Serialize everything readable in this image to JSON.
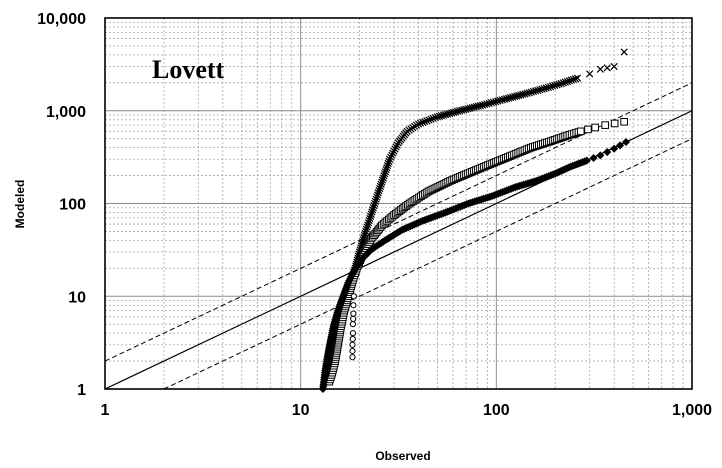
{
  "chart_data": {
    "type": "scatter",
    "title": "",
    "annotation": "Lovett",
    "xlabel": "Observed",
    "ylabel": "Modeled",
    "xscale": "log",
    "yscale": "log",
    "xlim": [
      1,
      1000
    ],
    "ylim": [
      1,
      10000
    ],
    "xticks": [
      "1",
      "10",
      "100",
      "1,000"
    ],
    "yticks": [
      "1",
      "10",
      "100",
      "1,000",
      "10,000"
    ],
    "grid": true,
    "reference_lines": [
      {
        "style": "solid",
        "factor": 1
      },
      {
        "style": "dashed",
        "factor": 2
      },
      {
        "style": "dashed",
        "factor": 0.5
      }
    ],
    "series": [
      {
        "marker": "x",
        "x": [
          13.6,
          14.0,
          14.5,
          15.0,
          15.6,
          16.3,
          17.2,
          18.0,
          19.0,
          20.0,
          21.5,
          23.5,
          26.0,
          28.5,
          31.5,
          35.0,
          40.0,
          50.0,
          65.0,
          85.0,
          110.0,
          140.0,
          180.0,
          220.0,
          260.0,
          300.0,
          340.0,
          400.0
        ],
        "y": [
          1.2,
          1.5,
          2.0,
          3.0,
          4.5,
          7.0,
          10.0,
          14.0,
          20.0,
          30.0,
          50.0,
          90.0,
          170.0,
          300.0,
          450.0,
          600.0,
          720.0,
          860.0,
          1000.0,
          1150.0,
          1330.0,
          1520.0,
          1760.0,
          2000.0,
          2250.0,
          2500.0,
          2800.0,
          3000.0
        ]
      },
      {
        "marker": "x",
        "x": [
          450.0
        ],
        "y": [
          4300.0
        ]
      },
      {
        "marker": "square",
        "x": [
          14.0,
          14.5,
          15.0,
          15.5,
          16.0,
          16.7,
          17.5,
          18.5,
          19.5,
          21.0,
          23.0,
          26.0,
          30.0,
          36.0,
          45.0,
          58.0,
          75.0,
          95.0,
          120.0,
          150.0,
          190.0,
          230.0,
          270.0,
          320.0,
          360.0,
          450.0
        ],
        "y": [
          1.2,
          1.5,
          2.0,
          3.0,
          4.5,
          7.0,
          10.0,
          15.0,
          21.0,
          30.0,
          42.0,
          58.0,
          75.0,
          100.0,
          135.0,
          175.0,
          220.0,
          270.0,
          330.0,
          400.0,
          470.0,
          540.0,
          600.0,
          660.0,
          700.0,
          760.0
        ]
      },
      {
        "marker": "diamond",
        "x": [
          13.0,
          13.3,
          13.7,
          14.2,
          14.8,
          15.5,
          16.5,
          17.5,
          18.8,
          20.5,
          23.0,
          27.0,
          33.0,
          42.0,
          55.0,
          72.0,
          95.0,
          125.0,
          160.0,
          200.0,
          240.0,
          290.0,
          340.0,
          400.0,
          460.0
        ],
        "y": [
          1.0,
          1.5,
          2.2,
          3.3,
          5.0,
          7.0,
          10.0,
          14.0,
          19.0,
          25.0,
          32.0,
          40.0,
          52.0,
          65.0,
          80.0,
          100.0,
          120.0,
          150.0,
          175.0,
          210.0,
          250.0,
          290.0,
          330.0,
          390.0,
          460.0
        ]
      },
      {
        "marker": "circle",
        "x": [
          18.4,
          18.4,
          18.5,
          18.5,
          18.6,
          18.6,
          18.7
        ],
        "y": [
          2.2,
          3.0,
          4.0,
          5.0,
          6.5,
          8.0,
          10.0
        ]
      }
    ]
  }
}
